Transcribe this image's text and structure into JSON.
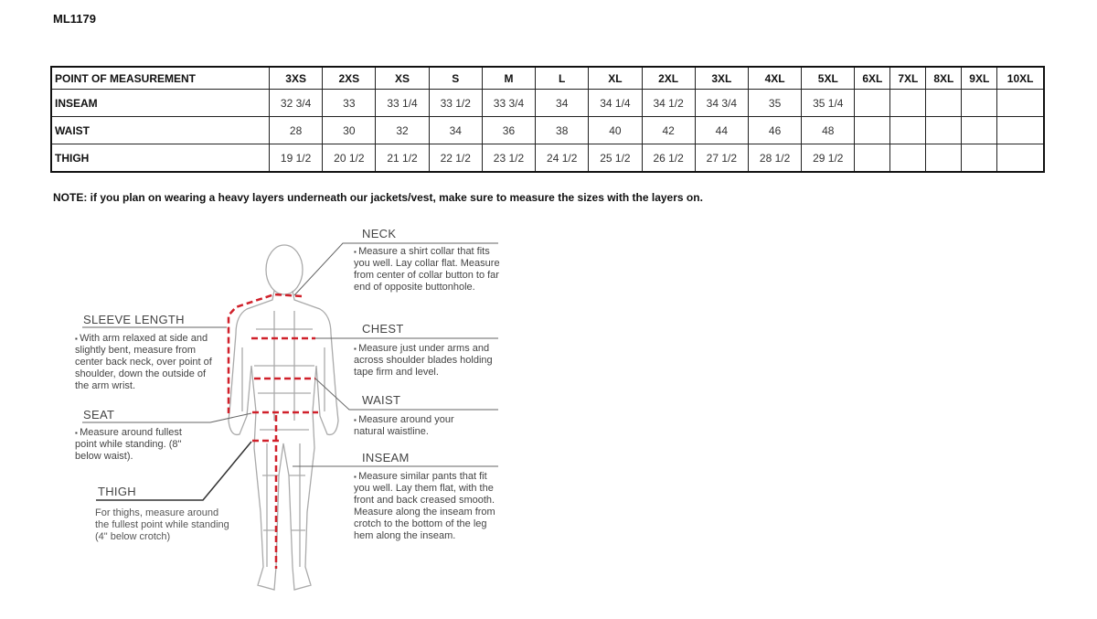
{
  "title": "ML1179",
  "table": {
    "headers": [
      "POINT OF MEASUREMENT",
      "3XS",
      "2XS",
      "XS",
      "S",
      "M",
      "L",
      "XL",
      "2XL",
      "3XL",
      "4XL",
      "5XL",
      "6XL",
      "7XL",
      "8XL",
      "9XL",
      "10XL"
    ],
    "rows": [
      {
        "label": "INSEAM",
        "values": [
          "32 3/4",
          "33",
          "33 1/4",
          "33 1/2",
          "33 3/4",
          "34",
          "34 1/4",
          "34 1/2",
          "34 3/4",
          "35",
          "35 1/4",
          "",
          "",
          "",
          "",
          ""
        ]
      },
      {
        "label": "WAIST",
        "values": [
          "28",
          "30",
          "32",
          "34",
          "36",
          "38",
          "40",
          "42",
          "44",
          "46",
          "48",
          "",
          "",
          "",
          "",
          ""
        ]
      },
      {
        "label": "THIGH",
        "values": [
          "19 1/2",
          "20 1/2",
          "21 1/2",
          "22 1/2",
          "23 1/2",
          "24 1/2",
          "25 1/2",
          "26 1/2",
          "27 1/2",
          "28 1/2",
          "29 1/2",
          "",
          "",
          "",
          "",
          ""
        ]
      }
    ]
  },
  "note": "NOTE: if you plan on wearing a heavy layers underneath our jackets/vest, make sure to measure the sizes with the layers on.",
  "guide": {
    "neck": {
      "label": "NECK",
      "text": "Measure a shirt collar that fits you well. Lay collar flat. Measure from center of collar button to far end of opposite buttonhole."
    },
    "chest": {
      "label": "CHEST",
      "text": "Measure just under arms and across shoulder blades holding tape firm and level."
    },
    "waist": {
      "label": "WAIST",
      "text": "Measure around your natural waistline."
    },
    "inseam": {
      "label": "INSEAM",
      "text": "Measure similar pants that fit you well. Lay them flat, with the front and back creased smooth. Measure along the inseam from crotch to the bottom of the leg hem along the inseam."
    },
    "sleeve": {
      "label": "SLEEVE LENGTH",
      "text": "With arm relaxed at side and slightly bent, measure from center back neck, over point of shoulder, down the outside of the arm wrist."
    },
    "seat": {
      "label": "SEAT",
      "text": "Measure around fullest point while standing. (8\" below waist)."
    },
    "thigh": {
      "label": "THIGH",
      "text": "For thighs, measure around the fullest point while standing (4\" below crotch)"
    }
  },
  "colors": {
    "measure_line": "#d0202a",
    "figure": "#aaaaaa"
  }
}
